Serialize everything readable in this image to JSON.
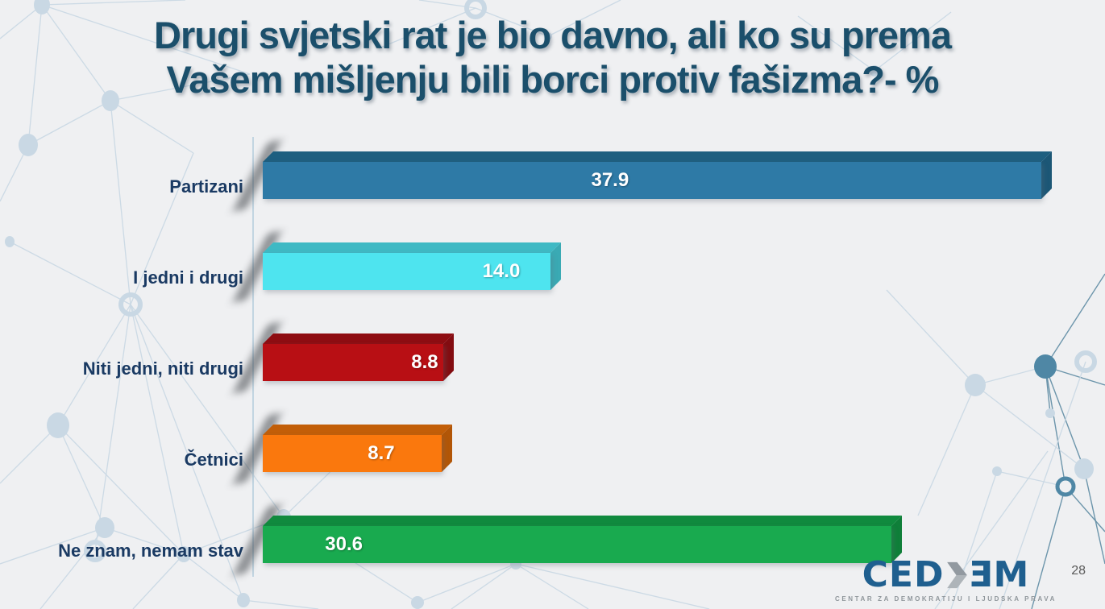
{
  "slide": {
    "title_line1": "Drugi svjetski rat je bio davno, ali ko su prema",
    "title_line2": "Vašem mišljenju bili borci protiv fašizma?- %"
  },
  "chart_data": {
    "type": "bar",
    "orientation": "horizontal",
    "style_3d": true,
    "title": "Drugi svjetski rat je bio davno, ali ko su prema Vašem mišljenju bili borci protiv fašizma? - %",
    "unit": "%",
    "categories": [
      "Partizani",
      "I jedni i drugi",
      "Niti jedni, niti drugi",
      "Četnici",
      "Ne znam, nemam stav"
    ],
    "values": [
      37.9,
      14.0,
      8.8,
      8.7,
      30.6
    ],
    "value_labels": [
      "37.9",
      "14.0",
      "8.8",
      "8.7",
      "30.6"
    ],
    "bar_colors": [
      "#2E7AA6",
      "#4EE4EF",
      "#B80F14",
      "#FA780D",
      "#19AA4F"
    ],
    "bar_shade_colors": [
      "#1E5F80",
      "#3FB9C4",
      "#8E0D12",
      "#C25E08",
      "#108A3E"
    ],
    "value_label_color": "#FFFFFF",
    "value_label_pos_pct": [
      44.6,
      82.9,
      89.7,
      66.2,
      12.9
    ],
    "axis": {
      "x_min": 0,
      "x_max": 41,
      "gridlines": false,
      "value_axis_visible": false
    },
    "legend": false,
    "category_axis_side": "left"
  },
  "footer": {
    "logo": {
      "text_part1": "CED",
      "text_part2": "ƎM",
      "tagline": "CENTAR ZA DEMOKRATIJU I LJUDSKA PRAVA",
      "color": "#1F5F8F"
    },
    "page_number": "28"
  },
  "colors": {
    "background": "#EFF0F2",
    "title": "#1B4F6B",
    "category_label": "#1A3A63",
    "value_label": "#FFFFFF",
    "network_light": "#C9D8E4",
    "network_dark": "#5D8BA3",
    "axis_line": "#C2D5E2",
    "tagline": "#8F969B",
    "page_number": "#595959"
  }
}
